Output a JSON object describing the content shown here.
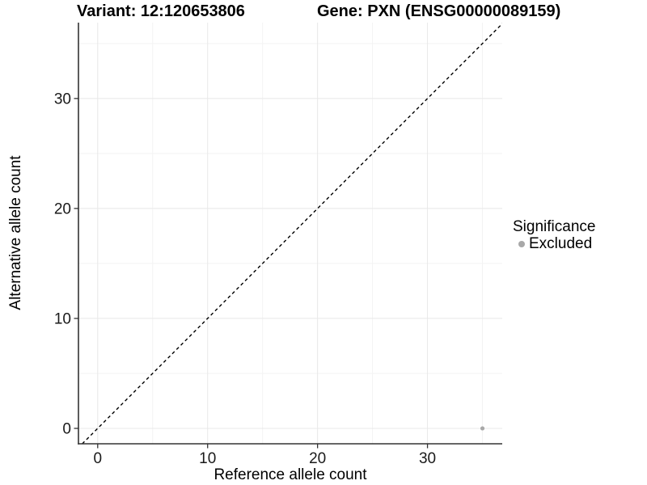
{
  "colors": {
    "background": "#ffffff",
    "grid_major": "#e8e8e8",
    "grid_minor": "#f3f3f3",
    "axis_line": "#333333",
    "tick_text": "#1a1a1a",
    "reference_line": "#000000",
    "point_excluded": "#a8a8a8"
  },
  "chart_data": {
    "type": "scatter",
    "title_left": "Variant: 12:120653806",
    "title_right": "Gene: PXN (ENSG00000089159)",
    "xlabel": "Reference allele count",
    "ylabel": "Alternative allele count",
    "xlim": [
      -1.75,
      36.8
    ],
    "ylim": [
      -1.4,
      36.9
    ],
    "x_ticks": [
      0,
      10,
      20,
      30
    ],
    "y_ticks": [
      0,
      10,
      20,
      30
    ],
    "x_minor_ticks": [
      5,
      15,
      25,
      35
    ],
    "y_minor_ticks": [
      5,
      15,
      25,
      35
    ],
    "grid": "major+minor",
    "legend_title": "Significance",
    "legend_position": "right",
    "series": [
      {
        "name": "Excluded",
        "color": "#a8a8a8",
        "points": [
          [
            35,
            0
          ]
        ]
      }
    ],
    "reference_line": {
      "type": "identity",
      "slope": 1,
      "intercept": 0,
      "style": "dashed",
      "color": "#000000"
    }
  }
}
